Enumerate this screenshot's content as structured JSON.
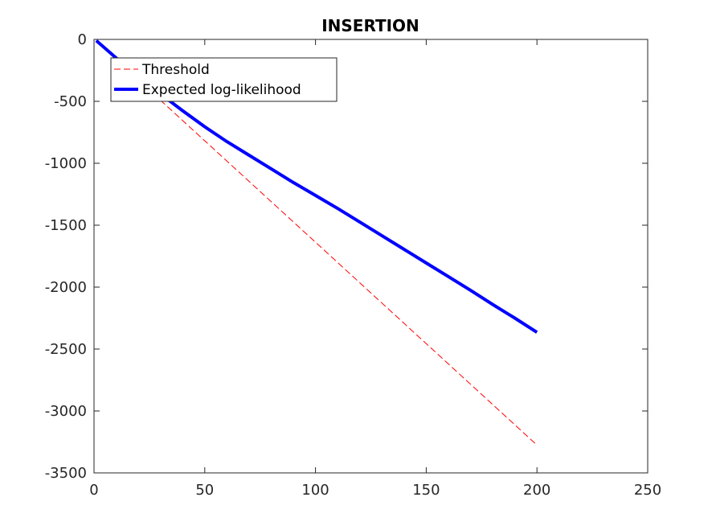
{
  "chart_data": {
    "type": "line",
    "title": "INSERTION",
    "xlabel": "",
    "ylabel": "",
    "xlim": [
      0,
      250
    ],
    "ylim": [
      -3500,
      0
    ],
    "xticks": [
      0,
      50,
      100,
      150,
      200,
      250
    ],
    "yticks": [
      0,
      -500,
      -1000,
      -1500,
      -2000,
      -2500,
      -3000,
      -3500
    ],
    "xtick_labels": [
      "0",
      "50",
      "100",
      "150",
      "200",
      "250"
    ],
    "ytick_labels": [
      "0",
      "-500",
      "-1000",
      "-1500",
      "-2000",
      "-2500",
      "-3000",
      "-3500"
    ],
    "grid": false,
    "legend_position": "top-left",
    "series": [
      {
        "name": "Threshold",
        "color": "#ff0000",
        "style": "dashed",
        "x": [
          1,
          200
        ],
        "y": [
          -16,
          -3275
        ]
      },
      {
        "name": "Expected log-likelihood",
        "color": "#0000ff",
        "style": "solid",
        "x": [
          1,
          10,
          20,
          30,
          40,
          50,
          60,
          70,
          80,
          90,
          100,
          110,
          120,
          130,
          140,
          150,
          160,
          170,
          180,
          190,
          200
        ],
        "y": [
          -10,
          -150,
          -300,
          -440,
          -575,
          -705,
          -825,
          -935,
          -1045,
          -1155,
          -1260,
          -1365,
          -1475,
          -1585,
          -1695,
          -1805,
          -1915,
          -2025,
          -2140,
          -2250,
          -2365
        ]
      }
    ]
  }
}
